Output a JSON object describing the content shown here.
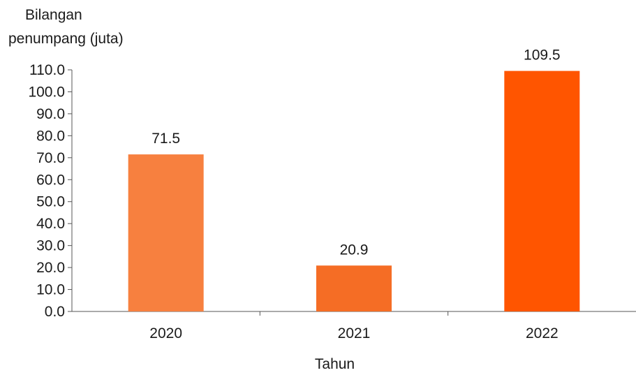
{
  "chart_data": {
    "type": "bar",
    "ylabel_lines": [
      "Bilangan",
      "penumpang  (juta)"
    ],
    "xlabel": "Tahun",
    "categories": [
      "2020",
      "2021",
      "2022"
    ],
    "values": [
      71.5,
      20.9,
      109.5
    ],
    "value_labels": [
      "71.5",
      "20.9",
      "109.5"
    ],
    "bar_colors": [
      "#F7803F",
      "#F56D25",
      "#FF5500"
    ],
    "yticks": [
      "0.0",
      "10.0",
      "20.0",
      "30.0",
      "40.0",
      "50.0",
      "60.0",
      "70.0",
      "80.0",
      "90.0",
      "100.0",
      "110.0"
    ],
    "ylim": [
      0,
      110
    ],
    "grid": false,
    "legend": "none"
  }
}
